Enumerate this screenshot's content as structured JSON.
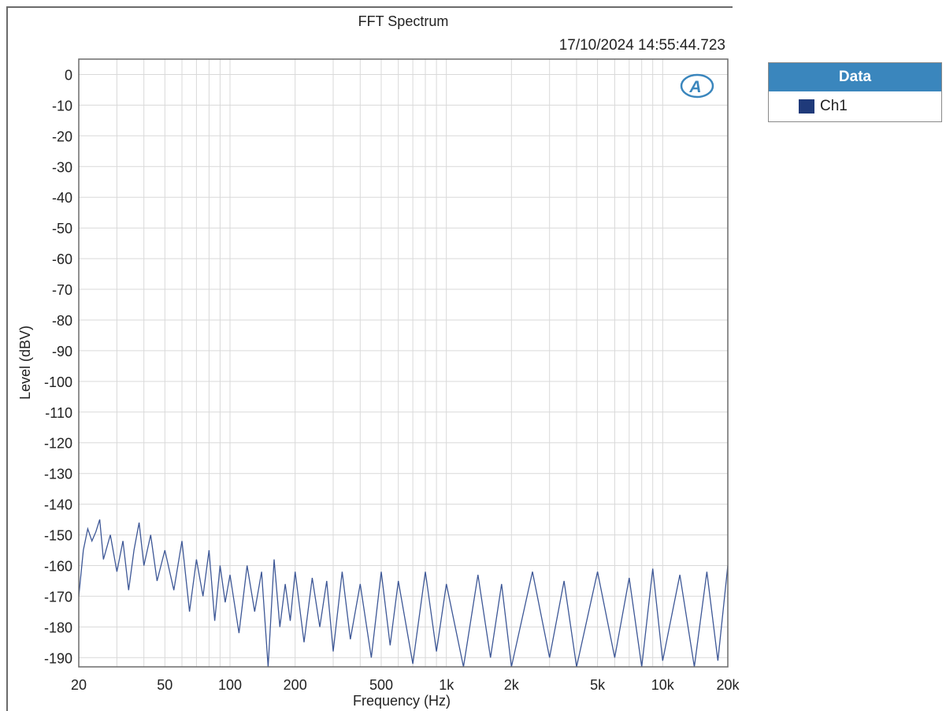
{
  "chart_data": {
    "type": "line",
    "title": "FFT Spectrum",
    "timestamp": "17/10/2024 14:55:44.723",
    "xlabel": "Frequency (Hz)",
    "ylabel": "Level (dBV)",
    "xscale": "log",
    "xlim": [
      20,
      20000
    ],
    "ylim": [
      -193,
      5
    ],
    "grid": true,
    "x_ticks": [
      {
        "value": 20,
        "label": "20"
      },
      {
        "value": 50,
        "label": "50"
      },
      {
        "value": 100,
        "label": "100"
      },
      {
        "value": 200,
        "label": "200"
      },
      {
        "value": 500,
        "label": "500"
      },
      {
        "value": 1000,
        "label": "1k"
      },
      {
        "value": 2000,
        "label": "2k"
      },
      {
        "value": 5000,
        "label": "5k"
      },
      {
        "value": 10000,
        "label": "10k"
      },
      {
        "value": 20000,
        "label": "20k"
      }
    ],
    "y_ticks": [
      0,
      -10,
      -20,
      -30,
      -40,
      -50,
      -60,
      -70,
      -80,
      -90,
      -100,
      -110,
      -120,
      -130,
      -140,
      -150,
      -160,
      -170,
      -180,
      -190
    ],
    "legend": {
      "title": "Data",
      "position": "right"
    },
    "series": [
      {
        "name": "Ch1",
        "color": "#3d5796",
        "x": [
          20,
          21,
          22,
          23,
          24,
          25,
          26,
          28,
          30,
          32,
          34,
          36,
          38,
          40,
          43,
          46,
          50,
          55,
          60,
          65,
          70,
          75,
          80,
          85,
          90,
          95,
          100,
          110,
          120,
          130,
          140,
          150,
          160,
          170,
          180,
          190,
          200,
          220,
          240,
          260,
          280,
          300,
          330,
          360,
          400,
          450,
          500,
          550,
          600,
          700,
          800,
          900,
          1000,
          1200,
          1400,
          1600,
          1800,
          2000,
          2500,
          3000,
          3500,
          4000,
          5000,
          6000,
          7000,
          8000,
          9000,
          10000,
          12000,
          14000,
          16000,
          18000,
          20000
        ],
        "values": [
          -170,
          -155,
          -148,
          -152,
          -149,
          -145,
          -158,
          -150,
          -162,
          -152,
          -168,
          -155,
          -146,
          -160,
          -150,
          -165,
          -155,
          -168,
          -152,
          -175,
          -158,
          -170,
          -155,
          -178,
          -160,
          -172,
          -163,
          -182,
          -160,
          -175,
          -162,
          -193,
          -158,
          -180,
          -166,
          -178,
          -162,
          -185,
          -164,
          -180,
          -165,
          -188,
          -162,
          -184,
          -166,
          -190,
          -162,
          -186,
          -165,
          -192,
          -162,
          -188,
          -166,
          -193,
          -163,
          -190,
          -166,
          -193,
          -162,
          -190,
          -165,
          -193,
          -162,
          -190,
          -164,
          -193,
          -161,
          -191,
          -163,
          -193,
          -162,
          -191,
          -160
        ]
      }
    ]
  },
  "logo_text": "AP"
}
